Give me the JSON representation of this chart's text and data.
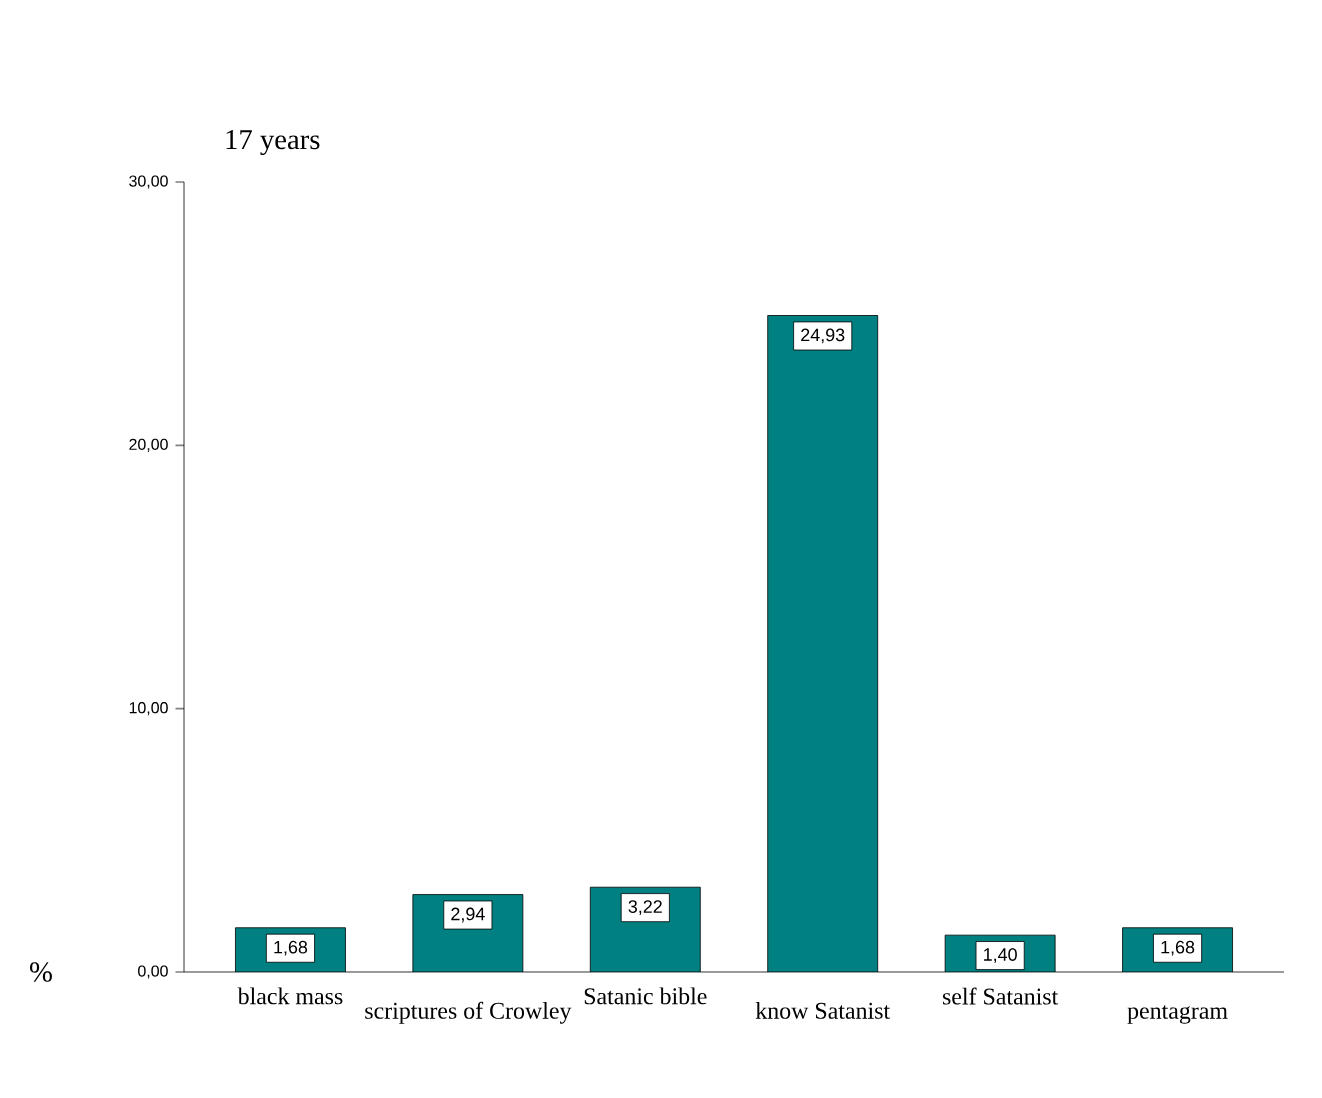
{
  "chart_data": {
    "type": "bar",
    "title": "17 years",
    "ylabel": "%",
    "categories": [
      "black mass",
      "scriptures of Crowley",
      "Satanic bible",
      "know Satanist",
      "self Satanist",
      "pentagram"
    ],
    "values": [
      1.68,
      2.94,
      3.22,
      24.93,
      1.4,
      1.68
    ],
    "value_labels": [
      "1,68",
      "2,94",
      "3,22",
      "24,93",
      "1,40",
      "1,68"
    ],
    "color": "#008080",
    "ylim": [
      0,
      30
    ],
    "yticks": [
      {
        "value": 0,
        "label": "0,00"
      },
      {
        "value": 10,
        "label": "10,00"
      },
      {
        "value": 20,
        "label": "20,00"
      },
      {
        "value": 30,
        "label": "30,00"
      }
    ]
  }
}
